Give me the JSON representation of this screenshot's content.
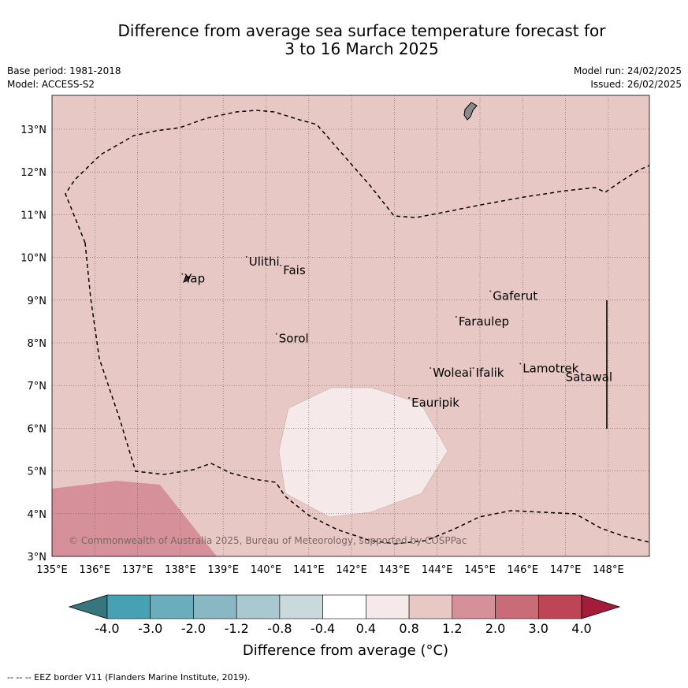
{
  "title_line1": "Difference from average sea surface temperature forecast for",
  "title_line2": "3 to 16 March 2025",
  "base_period": "Base period: 1981-2018",
  "model": "Model: ACCESS-S2",
  "model_run": "Model run: 24/02/2025",
  "issued": "Issued: 26/02/2025",
  "copyright": "© Commonwealth of Australia 2025, Bureau of Meteorology, supported by COSPPac",
  "lon_labels": [
    "135°E",
    "136°E",
    "137°E",
    "138°E",
    "139°E",
    "140°E",
    "141°E",
    "142°E",
    "143°E",
    "144°E",
    "145°E",
    "146°E",
    "147°E",
    "148°E"
  ],
  "lat_labels": [
    "3°N",
    "4°N",
    "5°N",
    "6°N",
    "7°N",
    "8°N",
    "9°N",
    "10°N",
    "11°N",
    "12°N",
    "13°N"
  ],
  "islands": [
    {
      "name": "Yap",
      "lon": 138.1,
      "lat": 9.5
    },
    {
      "name": "Ulithi",
      "lon": 139.6,
      "lat": 9.9
    },
    {
      "name": "Fais",
      "lon": 140.4,
      "lat": 9.7
    },
    {
      "name": "Gaferut",
      "lon": 145.3,
      "lat": 9.1
    },
    {
      "name": "Faraulep",
      "lon": 144.5,
      "lat": 8.5
    },
    {
      "name": "Sorol",
      "lon": 140.3,
      "lat": 8.1
    },
    {
      "name": "Woleai",
      "lon": 143.9,
      "lat": 7.3
    },
    {
      "name": "Ifalik",
      "lon": 144.9,
      "lat": 7.3
    },
    {
      "name": "Lamotrek",
      "lon": 146.0,
      "lat": 7.4
    },
    {
      "name": "Satawal",
      "lon": 147.0,
      "lat": 7.2
    },
    {
      "name": "Eauripik",
      "lon": 143.4,
      "lat": 6.6
    }
  ],
  "colorbar": {
    "ticks": [
      "-4.0",
      "-3.0",
      "-2.0",
      "-1.2",
      "-0.8",
      "-0.4",
      "0.4",
      "0.8",
      "1.2",
      "2.0",
      "3.0",
      "4.0"
    ],
    "colors": [
      "#37757f",
      "#46a1b3",
      "#6aadbc",
      "#89b8c4",
      "#a9c8cf",
      "#c9d9dc",
      "#ffffff",
      "#f5e9e9",
      "#e8c8c4",
      "#d5909a",
      "#ca6c78",
      "#be4555",
      "#a51c3a"
    ],
    "title": "Difference from average (°C)"
  },
  "anomaly_colors": {
    "background": "#e8c8c4",
    "low_patch": "#f5e9e9",
    "high_patch": "#d5909a"
  },
  "footnote": "--  --  -- EEZ border V11 (Flanders Marine Institute, 2019)."
}
